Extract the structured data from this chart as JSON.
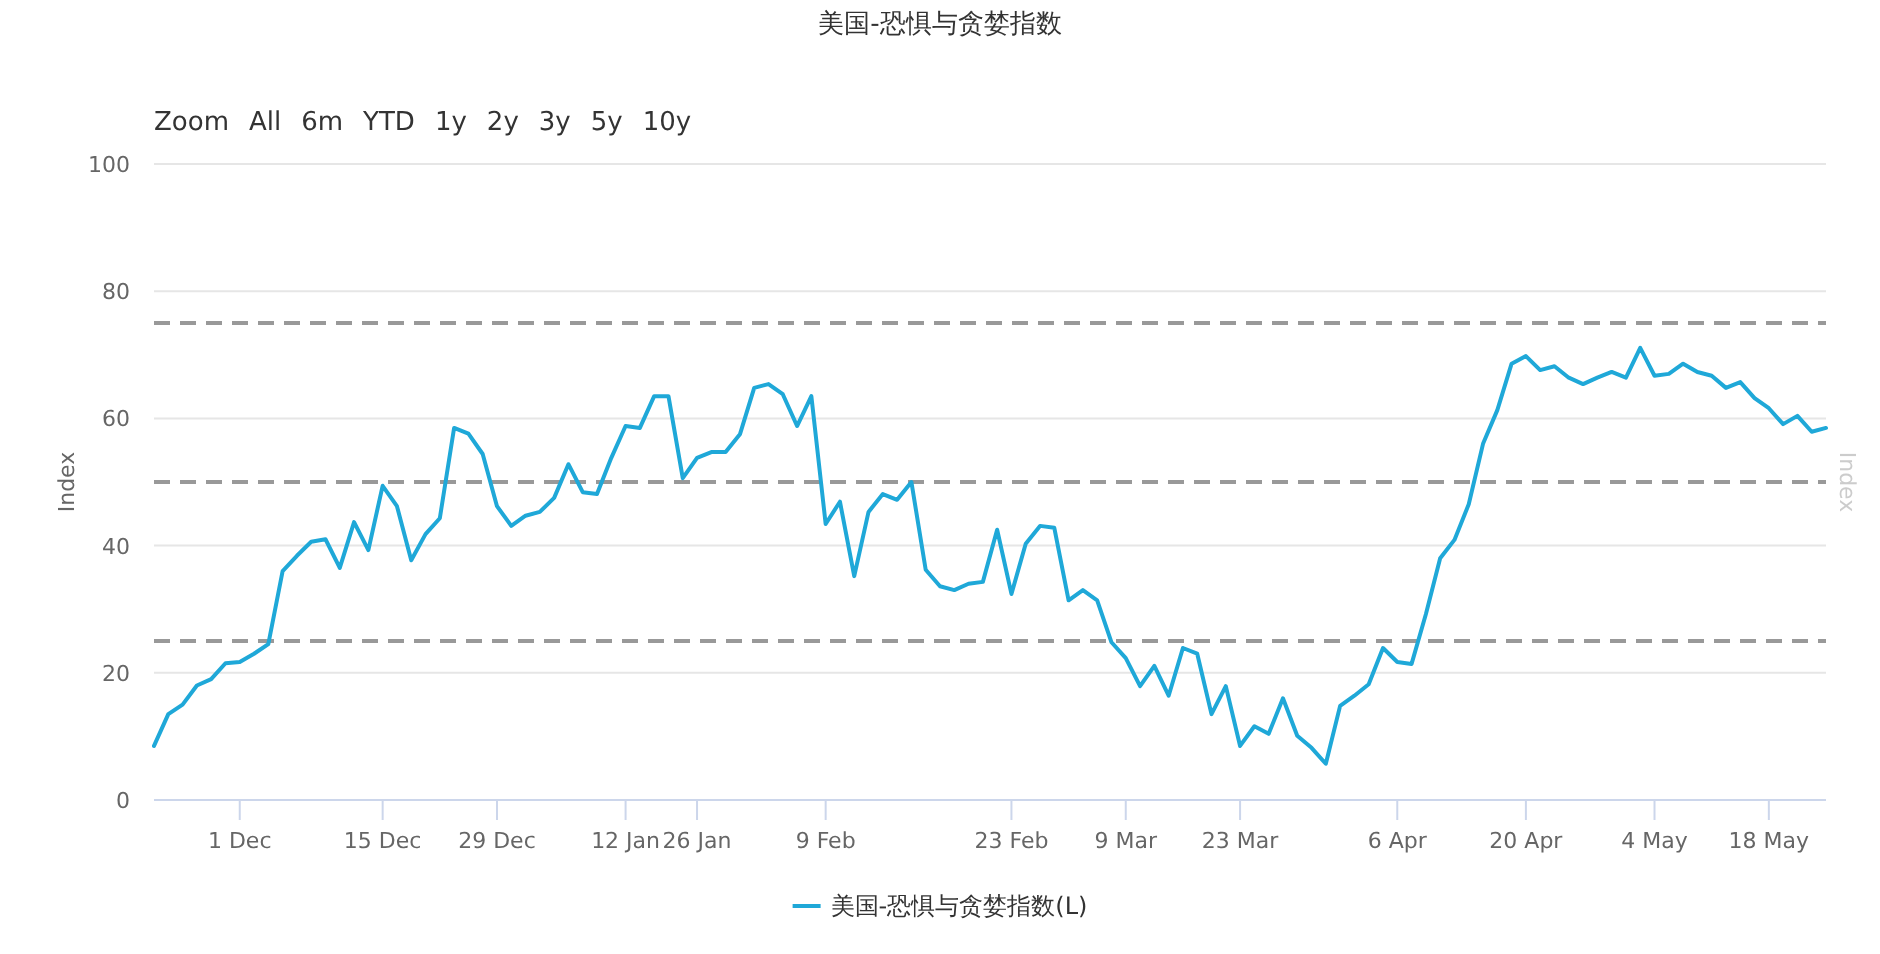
{
  "chart_data": {
    "type": "line",
    "title": "美国-恐惧与贪婪指数",
    "ylabel": "Index",
    "y2label": "Index",
    "annotations": [
      "Zoom",
      "All",
      "6m",
      "YTD",
      "1y",
      "2y",
      "3y",
      "5y",
      "10y"
    ],
    "ylim": [
      0,
      100
    ],
    "yticks": [
      0,
      20,
      40,
      60,
      80,
      100
    ],
    "grid": "y",
    "legend": "bottom",
    "line_style": "solid",
    "ref_lines": [
      {
        "axis": "y",
        "value": 25,
        "color": "#999999",
        "line_style": "dashed"
      },
      {
        "axis": "y",
        "value": 50,
        "color": "#999999",
        "line_style": "dashed"
      },
      {
        "axis": "y",
        "value": 75,
        "color": "#999999",
        "line_style": "dashed"
      }
    ],
    "categories": [
      null,
      null,
      null,
      null,
      null,
      null,
      "1 Dec",
      null,
      null,
      null,
      null,
      null,
      null,
      null,
      null,
      null,
      "15 Dec",
      null,
      null,
      null,
      null,
      null,
      null,
      null,
      "29 Dec",
      null,
      null,
      null,
      null,
      null,
      null,
      null,
      null,
      "12 Jan",
      null,
      null,
      null,
      null,
      "26 Jan",
      null,
      null,
      null,
      null,
      null,
      null,
      null,
      null,
      "9 Feb",
      null,
      null,
      null,
      null,
      null,
      null,
      null,
      null,
      null,
      null,
      null,
      null,
      "23 Feb",
      null,
      null,
      null,
      null,
      null,
      null,
      null,
      "9 Mar",
      null,
      null,
      null,
      null,
      null,
      null,
      null,
      "23 Mar",
      null,
      null,
      null,
      null,
      null,
      null,
      null,
      null,
      null,
      null,
      "6 Apr",
      null,
      null,
      null,
      null,
      null,
      null,
      null,
      null,
      "20 Apr",
      null,
      null,
      null,
      null,
      null,
      null,
      null,
      null,
      "4 May",
      null,
      null,
      null,
      null,
      null,
      null,
      null,
      "18 May",
      null,
      null,
      null,
      null
    ],
    "series": [
      {
        "name": "美国-恐惧与贪婪指数(L)",
        "color": "#1fa8d8",
        "values": [
          8.5,
          13.5,
          15,
          18,
          19,
          21.5,
          21.7,
          23,
          24.5,
          36,
          38.4,
          40.6,
          41,
          36.5,
          43.7,
          39.3,
          49.4,
          46.2,
          37.7,
          41.8,
          44.3,
          58.5,
          57.6,
          54.4,
          46.2,
          43.1,
          44.7,
          45.3,
          47.5,
          52.8,
          48.4,
          48.1,
          53.8,
          58.8,
          58.5,
          63.5,
          63.5,
          50.6,
          53.8,
          54.7,
          54.7,
          57.5,
          64.8,
          65.4,
          63.8,
          58.8,
          63.5,
          43.4,
          46.9,
          35.2,
          45.3,
          48.1,
          47.2,
          50,
          36.2,
          33.6,
          33,
          34,
          34.3,
          42.5,
          32.4,
          40.3,
          43.1,
          42.8,
          31.4,
          33,
          31.4,
          24.8,
          22.3,
          17.9,
          21.1,
          16.4,
          23.9,
          23,
          13.5,
          17.9,
          8.5,
          11.6,
          10.4,
          16,
          10.1,
          8.2,
          5.7,
          14.8,
          16.4,
          18.2,
          23.9,
          21.7,
          21.4,
          29.2,
          38,
          40.9,
          46.5,
          56,
          61.3,
          68.6,
          69.8,
          67.6,
          68.2,
          66.4,
          65.4,
          66.4,
          67.3,
          66.4,
          71.1,
          66.7,
          67,
          68.6,
          67.3,
          66.7,
          64.8,
          65.7,
          63.2,
          61.6,
          59.1,
          60.4,
          57.9,
          58.5
        ]
      }
    ]
  }
}
